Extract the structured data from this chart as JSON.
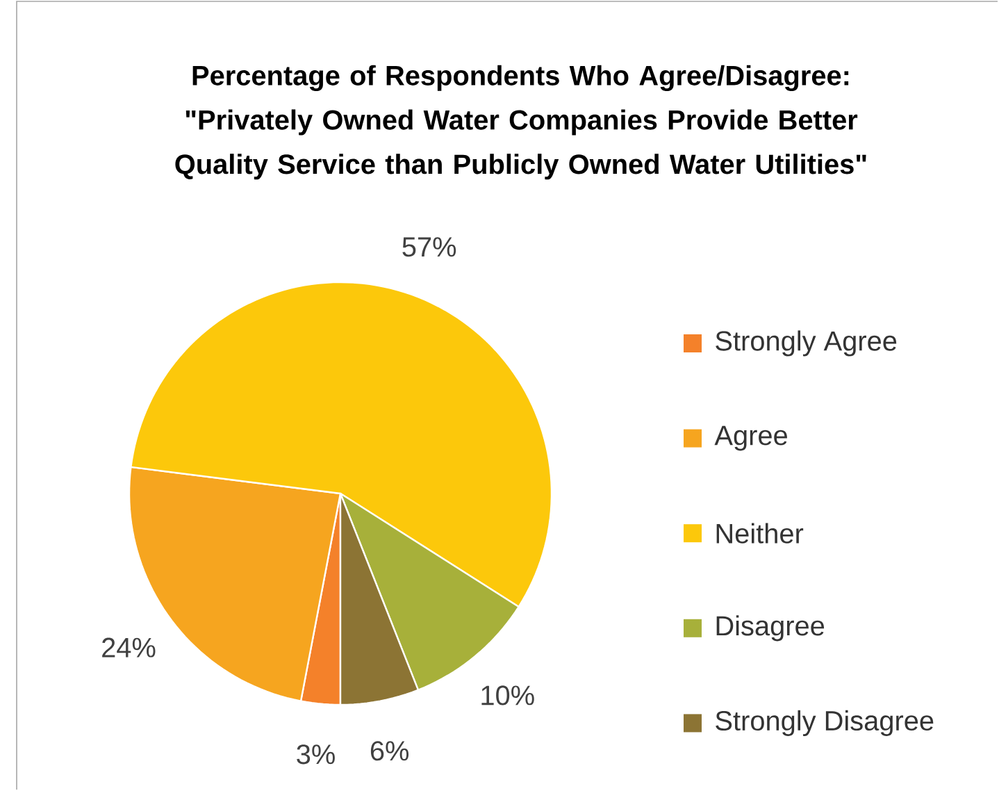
{
  "chart_data": {
    "type": "pie",
    "title": "Percentage of Respondents Who Agree/Disagree: \"Privately Owned Water Companies Provide Better Quality Service than Publicly Owned Water Utilities\"",
    "categories": [
      "Strongly Agree",
      "Agree",
      "Neither",
      "Disagree",
      "Strongly Disagree"
    ],
    "values": [
      3,
      24,
      57,
      10,
      6
    ],
    "value_labels": [
      "3%",
      "24%",
      "57%",
      "10%",
      "6%"
    ],
    "colors": [
      "#f4812a",
      "#f6a51f",
      "#fcc80b",
      "#a7b03a",
      "#8c7434"
    ],
    "legend": "right"
  }
}
